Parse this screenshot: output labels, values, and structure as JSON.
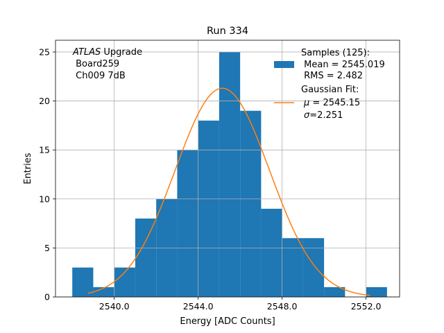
{
  "chart_data": {
    "type": "bar",
    "title": "Run 334",
    "xlabel": "Energy [ADC Counts]",
    "ylabel": "Entries",
    "xlim": [
      2537.2,
      2553.6
    ],
    "ylim": [
      0,
      26.2
    ],
    "xticks": [
      2540.0,
      2544.0,
      2548.0,
      2552.0
    ],
    "xtick_labels": [
      "2540.0",
      "2544.0",
      "2548.0",
      "2552.0"
    ],
    "yticks": [
      0,
      5,
      10,
      15,
      20,
      25
    ],
    "ytick_labels": [
      "0",
      "5",
      "10",
      "15",
      "20",
      "25"
    ],
    "grid": true,
    "legend_position": "top-right",
    "annotation": {
      "italic": "ATLAS",
      "line1_rest": " Upgrade",
      "line2": " Board259",
      "line3": " Ch009 7dB"
    },
    "histogram": {
      "name": "Samples (125):",
      "stats": [
        " Mean = 2545.019",
        " RMS = 2.482"
      ],
      "color": "#1f77b4",
      "bin_width": 1,
      "bin_starts": [
        2538,
        2539,
        2540,
        2541,
        2542,
        2543,
        2544,
        2545,
        2546,
        2547,
        2548,
        2549,
        2550,
        2551,
        2552
      ],
      "counts": [
        3,
        1,
        3,
        8,
        10,
        15,
        18,
        25,
        19,
        9,
        6,
        6,
        1,
        0,
        1
      ]
    },
    "fit": {
      "name": "Gaussian Fit:",
      "mu_symbol": "μ",
      "mu_text": " = 2545.15",
      "sigma_symbol": "σ",
      "sigma_text": "=2.251",
      "color": "#ff7f0e",
      "mu": 2545.15,
      "sigma": 2.251,
      "peak": 21.3,
      "x_range": [
        2538.75,
        2552.2
      ]
    }
  }
}
